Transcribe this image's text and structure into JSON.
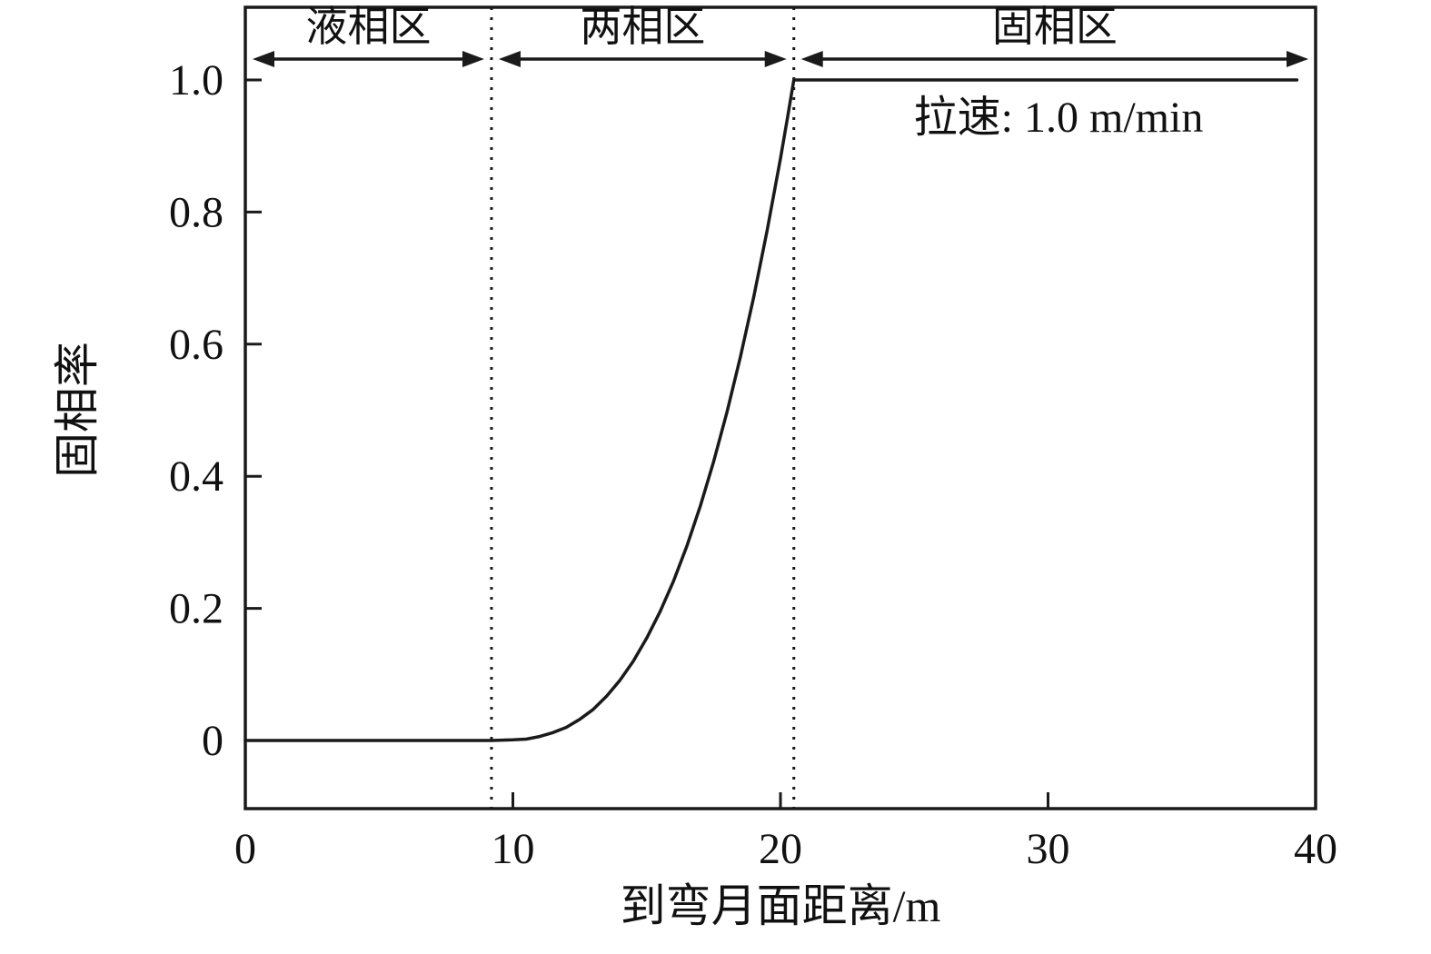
{
  "colors": {
    "ink": "#1a1a1a",
    "background": "#ffffff"
  },
  "chart_data": {
    "type": "line",
    "title": "",
    "xlabel": "到弯月面距离/m",
    "ylabel": "固相率",
    "annotation": "拉速: 1.0 m/min",
    "grid": false,
    "legend": "none",
    "xlim": [
      0,
      40
    ],
    "ylim": [
      -0.1,
      1.1
    ],
    "xticks": [
      0,
      10,
      20,
      30,
      40
    ],
    "xtick_labels": [
      "0",
      "10",
      "20",
      "30",
      "40"
    ],
    "yticks": [
      0,
      0.2,
      0.4,
      0.6,
      0.8,
      1.0
    ],
    "ytick_labels": [
      "0",
      "0.2",
      "0.4",
      "0.6",
      "0.8",
      "1.0"
    ],
    "boundaries": [
      9.2,
      20.5
    ],
    "regions": [
      {
        "label": "液相区",
        "from": 0,
        "to": 9.2
      },
      {
        "label": "两相区",
        "from": 9.2,
        "to": 20.5
      },
      {
        "label": "固相区",
        "from": 20.5,
        "to": 40
      }
    ],
    "series": [
      {
        "name": "固相率",
        "points": [
          [
            0,
            0
          ],
          [
            4,
            0
          ],
          [
            8,
            0
          ],
          [
            9.2,
            0
          ],
          [
            10,
            0.001
          ],
          [
            10.5,
            0.002
          ],
          [
            11,
            0.006
          ],
          [
            11.5,
            0.012
          ],
          [
            12,
            0.02
          ],
          [
            12.5,
            0.032
          ],
          [
            13,
            0.047
          ],
          [
            13.5,
            0.067
          ],
          [
            14,
            0.091
          ],
          [
            14.5,
            0.12
          ],
          [
            15,
            0.155
          ],
          [
            15.5,
            0.195
          ],
          [
            16,
            0.241
          ],
          [
            16.5,
            0.294
          ],
          [
            17,
            0.354
          ],
          [
            17.5,
            0.422
          ],
          [
            18,
            0.497
          ],
          [
            18.5,
            0.58
          ],
          [
            19,
            0.671
          ],
          [
            19.5,
            0.772
          ],
          [
            20,
            0.881
          ],
          [
            20.25,
            0.94
          ],
          [
            20.5,
            1.0
          ],
          [
            21,
            1.0
          ],
          [
            25,
            1.0
          ],
          [
            30,
            1.0
          ],
          [
            35,
            1.0
          ],
          [
            39.3,
            1.0
          ]
        ]
      }
    ]
  }
}
